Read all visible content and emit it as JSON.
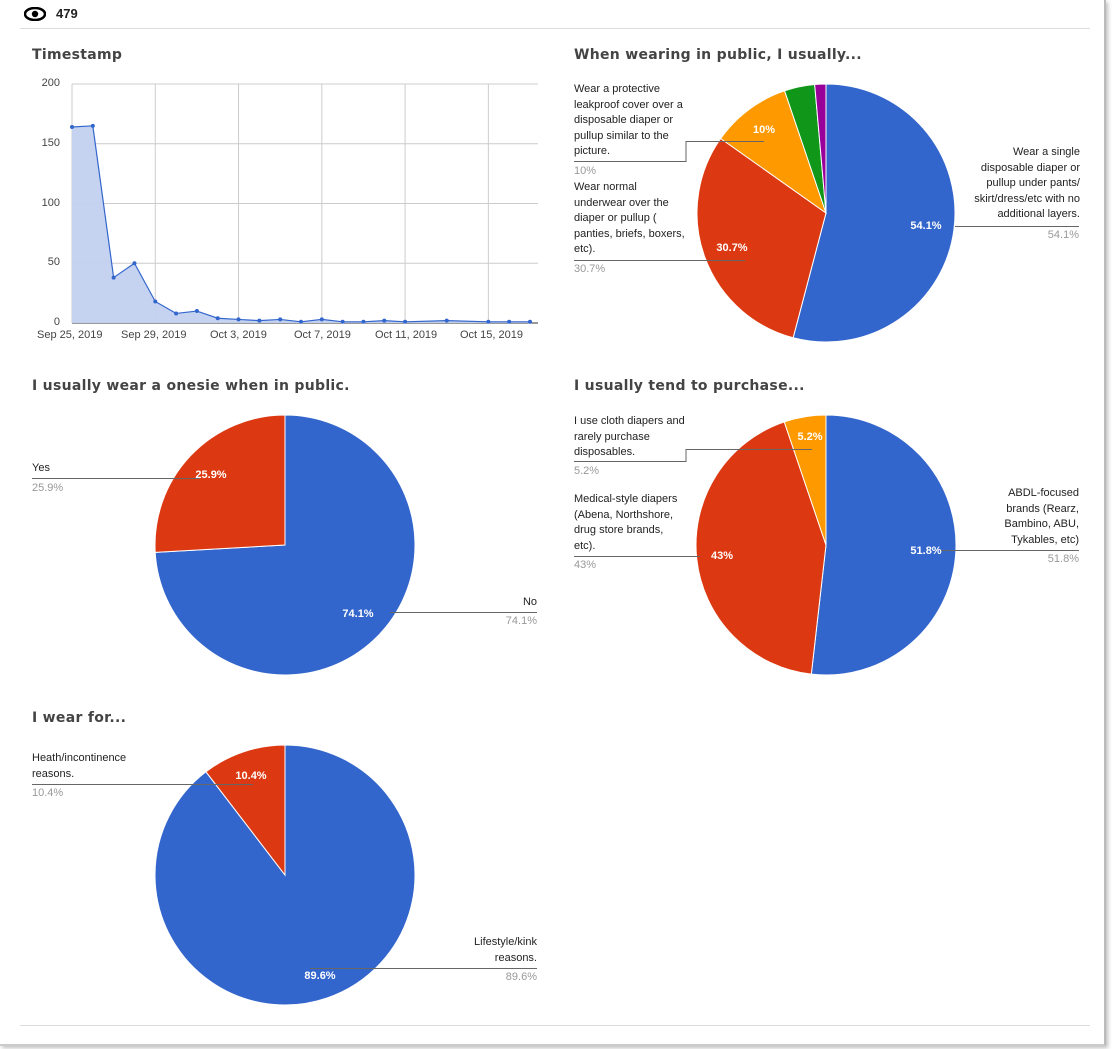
{
  "header": {
    "views_icon": "eye-icon",
    "views_count": "479"
  },
  "colors": {
    "blue": "#3366cc",
    "red": "#dc3912",
    "orange": "#ff9900",
    "green": "#109618",
    "purple": "#990099",
    "area_fill": "#c2d1f0",
    "grid": "#cccccc"
  },
  "chart_data": [
    {
      "type": "area",
      "title": "Timestamp",
      "x": [
        "2019-09-25",
        "2019-09-26",
        "2019-09-27",
        "2019-09-28",
        "2019-09-29",
        "2019-09-30",
        "2019-10-01",
        "2019-10-02",
        "2019-10-03",
        "2019-10-04",
        "2019-10-05",
        "2019-10-06",
        "2019-10-07",
        "2019-10-08",
        "2019-10-09",
        "2019-10-10",
        "2019-10-11",
        "2019-10-13",
        "2019-10-15",
        "2019-10-16",
        "2019-10-17"
      ],
      "values": [
        164,
        165,
        38,
        50,
        18,
        8,
        10,
        4,
        3,
        2,
        3,
        1,
        3,
        1,
        1,
        2,
        1,
        2,
        1,
        1,
        1
      ],
      "xlim": [
        "2019-09-25",
        "2019-10-17"
      ],
      "ylim": [
        0,
        200
      ],
      "x_ticks": [
        "Sep 25, 2019",
        "Sep 29, 2019",
        "Oct 3, 2019",
        "Oct 7, 2019",
        "Oct 11, 2019",
        "Oct 15, 2019"
      ],
      "y_ticks": [
        "200",
        "150",
        "100",
        "50",
        "0"
      ],
      "grid": true
    },
    {
      "type": "pie",
      "title": "When wearing in public, I usually...",
      "slices": [
        {
          "label": "Wear a single disposable diaper or pullup under pants/ skirt/dress/etc with no additional layers.",
          "value": 54.1,
          "pct": "54.1%",
          "color": "#3366cc"
        },
        {
          "label": "Wear normal underwear over the diaper or pullup ( panties, briefs, boxers, etc).",
          "value": 30.7,
          "pct": "30.7%",
          "color": "#dc3912"
        },
        {
          "label": "Wear a protective leakproof cover over a disposable diaper or pullup similar to the picture.",
          "value": 10,
          "pct": "10%",
          "color": "#ff9900"
        },
        {
          "value": 3.8,
          "color": "#109618"
        },
        {
          "value": 1.4,
          "color": "#990099"
        }
      ]
    },
    {
      "type": "pie",
      "title": "I usually wear a onesie when in public.",
      "slices": [
        {
          "label": "No",
          "value": 74.1,
          "pct": "74.1%",
          "color": "#3366cc"
        },
        {
          "label": "Yes",
          "value": 25.9,
          "pct": "25.9%",
          "color": "#dc3912"
        }
      ]
    },
    {
      "type": "pie",
      "title": "I usually tend to purchase...",
      "slices": [
        {
          "label": "ABDL-focused brands (Rearz, Bambino, ABU, Tykables, etc)",
          "value": 51.8,
          "pct": "51.8%",
          "color": "#3366cc"
        },
        {
          "label": "Medical-style diapers (Abena, Northshore, drug store brands, etc).",
          "value": 43,
          "pct": "43%",
          "color": "#dc3912"
        },
        {
          "label": "I use cloth diapers and rarely purchase disposables.",
          "value": 5.2,
          "pct": "5.2%",
          "color": "#ff9900"
        }
      ]
    },
    {
      "type": "pie",
      "title": "I wear for...",
      "slices": [
        {
          "label": "Lifestyle/kink reasons.",
          "value": 89.6,
          "pct": "89.6%",
          "color": "#3366cc"
        },
        {
          "label": "Heath/incontinence reasons.",
          "value": 10.4,
          "pct": "10.4%",
          "color": "#dc3912"
        }
      ]
    }
  ]
}
